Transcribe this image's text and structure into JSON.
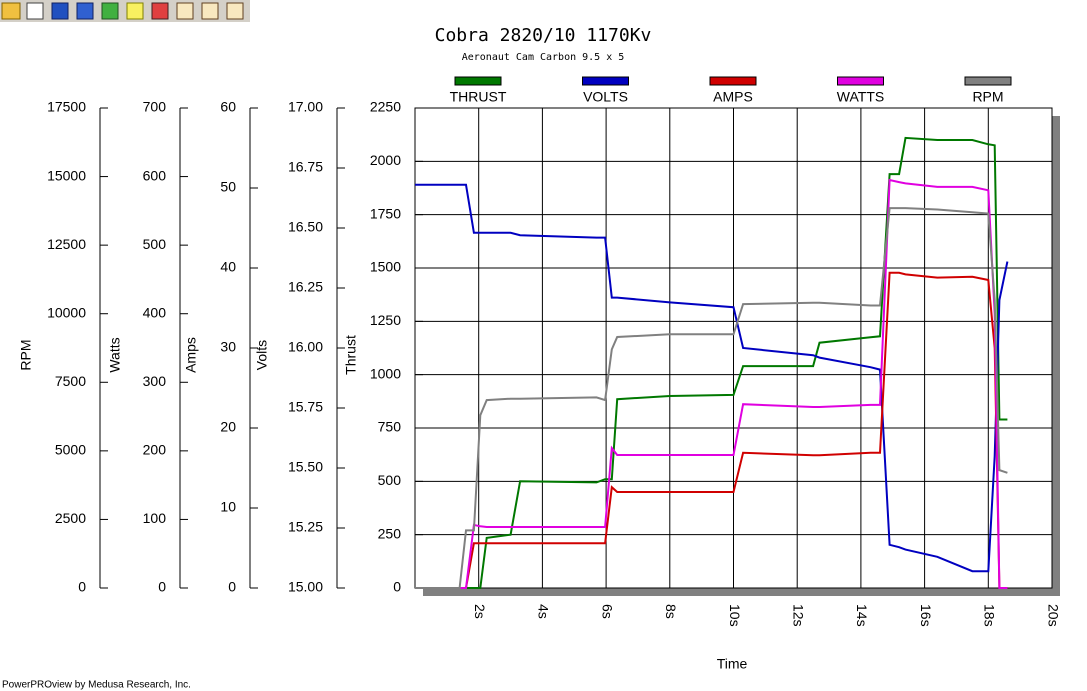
{
  "chart_data": {
    "type": "line",
    "title": "Cobra 2820/10 1170Kv",
    "subtitle": "Aeronaut Cam Carbon 9.5 x 5",
    "footer": "PowerPROview by Medusa Research, Inc.",
    "xlabel": "Time",
    "ylabel": "Thrust",
    "y2label": "Volts",
    "y3label": "Amps",
    "y4label": "Watts",
    "y5label": "RPM",
    "xlim": [
      0,
      20
    ],
    "xticks": [
      {
        "value": 2,
        "label": "2s"
      },
      {
        "value": 4,
        "label": "4s"
      },
      {
        "value": 6,
        "label": "6s"
      },
      {
        "value": 8,
        "label": "8s"
      },
      {
        "value": 10,
        "label": "10s"
      },
      {
        "value": 12,
        "label": "12s"
      },
      {
        "value": 14,
        "label": "14s"
      },
      {
        "value": 16,
        "label": "16s"
      },
      {
        "value": 18,
        "label": "18s"
      },
      {
        "value": 20,
        "label": "20s"
      }
    ],
    "ylim": [
      0,
      2250
    ],
    "yticks": [
      0,
      250,
      500,
      750,
      1000,
      1250,
      1500,
      1750,
      2000,
      2250
    ],
    "y2lim": [
      15,
      17
    ],
    "y2ticks": [
      {
        "value": 15,
        "label": "15.00"
      },
      {
        "value": 15.25,
        "label": "15.25"
      },
      {
        "value": 15.5,
        "label": "15.50"
      },
      {
        "value": 15.75,
        "label": "15.75"
      },
      {
        "value": 16,
        "label": "16.00"
      },
      {
        "value": 16.25,
        "label": "16.25"
      },
      {
        "value": 16.5,
        "label": "16.50"
      },
      {
        "value": 16.75,
        "label": "16.75"
      },
      {
        "value": 17,
        "label": "17.00"
      }
    ],
    "y3lim": [
      0,
      60
    ],
    "y3ticks": [
      0,
      10,
      20,
      30,
      40,
      50,
      60
    ],
    "y4lim": [
      0,
      700
    ],
    "y4ticks": [
      0,
      100,
      200,
      300,
      400,
      500,
      600,
      700
    ],
    "y5lim": [
      0,
      17500
    ],
    "y5ticks": [
      0,
      2500,
      5000,
      7500,
      10000,
      12500,
      15000,
      17500
    ],
    "grid": true,
    "legend": "top",
    "x": [
      0,
      1.4,
      1.6,
      1.85,
      2.05,
      2.25,
      3.0,
      3.3,
      5.7,
      5.97,
      6.18,
      6.35,
      8,
      10,
      10.3,
      12.5,
      12.7,
      14.3,
      14.6,
      14.9,
      15.2,
      15.4,
      16.4,
      17.5,
      18.0,
      18.2,
      18.35,
      18.6
    ],
    "series": [
      {
        "name": "THRUST",
        "color": "#007800",
        "axis": "y",
        "values": [
          0,
          0,
          0,
          0,
          0,
          235,
          250,
          500,
          495,
          510,
          510,
          885,
          900,
          905,
          1040,
          1040,
          1150,
          1175,
          1180,
          1940,
          1940,
          2110,
          2100,
          2100,
          2080,
          2075,
          790,
          790
        ]
      },
      {
        "name": "VOLTS",
        "color": "#0000c0",
        "axis": "y2",
        "values": [
          16.68,
          16.68,
          16.68,
          16.48,
          16.48,
          16.48,
          16.48,
          16.47,
          16.46,
          16.46,
          16.21,
          16.21,
          16.19,
          16.17,
          16.0,
          15.97,
          15.96,
          15.92,
          15.91,
          15.18,
          15.17,
          15.16,
          15.13,
          15.07,
          15.07,
          15.55,
          16.2,
          16.36
        ]
      },
      {
        "name": "AMPS",
        "color": "#d00000",
        "axis": "y3",
        "values": [
          0,
          0,
          0,
          5.6,
          5.6,
          5.6,
          5.6,
          5.6,
          5.6,
          5.6,
          12.6,
          12.0,
          12.0,
          12.0,
          16.9,
          16.6,
          16.6,
          16.9,
          16.9,
          39.4,
          39.4,
          39.2,
          38.8,
          38.9,
          38.5,
          30,
          0,
          0
        ]
      },
      {
        "name": "WATTS",
        "color": "#e000e0",
        "axis": "y4",
        "values": [
          0,
          0,
          0,
          92,
          90,
          89,
          89,
          89,
          89,
          89,
          204,
          194,
          194,
          194,
          268,
          264,
          264,
          267,
          267,
          595,
          592,
          590,
          585,
          585,
          580,
          400,
          0,
          0
        ]
      },
      {
        "name": "RPM",
        "color": "#808080",
        "axis": "y5",
        "values": [
          0,
          0,
          2100,
          2100,
          6300,
          6850,
          6900,
          6900,
          6950,
          6850,
          8700,
          9150,
          9250,
          9250,
          10350,
          10400,
          10400,
          10300,
          10300,
          13850,
          13850,
          13850,
          13800,
          13700,
          13650,
          10500,
          4300,
          4200
        ]
      }
    ]
  }
}
